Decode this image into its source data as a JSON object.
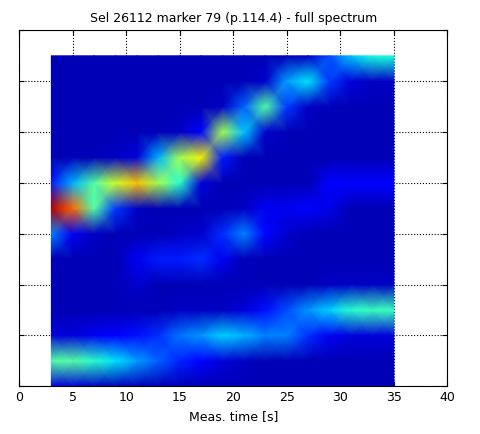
{
  "chart_data": {
    "type": "heatmap",
    "title": "Sel 26112 marker 79 (p.114.4) - full spectrum",
    "x_label": "Meas. time [s]",
    "xlim": [
      0,
      40
    ],
    "xticks": [
      0,
      5,
      10,
      15,
      20,
      25,
      30,
      35,
      40
    ],
    "ylim": [
      0,
      7
    ],
    "yticks": [
      0,
      1,
      2,
      3,
      4,
      5,
      6,
      7
    ],
    "grid": true,
    "tick_labels": "x",
    "color": "jet",
    "x": [
      3,
      5,
      7,
      9,
      11,
      13,
      15,
      17,
      19,
      21,
      23,
      25,
      27,
      29,
      31,
      33,
      35
    ],
    "y": [
      0,
      0.5,
      1,
      1.5,
      2,
      2.5,
      3,
      3.5,
      4,
      4.5,
      5,
      5.5,
      6,
      6.5
    ],
    "cell_range": [
      0,
      1
    ],
    "cells": [
      [
        0.08,
        0.08,
        0.06,
        0.05,
        0.05,
        0.05,
        0.05,
        0.05,
        0.05,
        0.05,
        0.05,
        0.05,
        0.05,
        0.05,
        0.05,
        0.05,
        0.05
      ],
      [
        0.45,
        0.45,
        0.4,
        0.35,
        0.28,
        0.22,
        0.16,
        0.12,
        0.08,
        0.06,
        0.05,
        0.05,
        0.05,
        0.05,
        0.05,
        0.05,
        0.05
      ],
      [
        0.08,
        0.08,
        0.1,
        0.12,
        0.14,
        0.17,
        0.24,
        0.27,
        0.33,
        0.3,
        0.25,
        0.25,
        0.17,
        0.1,
        0.08,
        0.08,
        0.08
      ],
      [
        0.05,
        0.05,
        0.05,
        0.05,
        0.05,
        0.05,
        0.06,
        0.06,
        0.06,
        0.08,
        0.14,
        0.2,
        0.27,
        0.33,
        0.4,
        0.42,
        0.42
      ],
      [
        0.05,
        0.05,
        0.05,
        0.05,
        0.07,
        0.05,
        0.05,
        0.05,
        0.05,
        0.05,
        0.05,
        0.05,
        0.05,
        0.06,
        0.06,
        0.06,
        0.06
      ],
      [
        0.05,
        0.05,
        0.05,
        0.05,
        0.1,
        0.15,
        0.15,
        0.17,
        0.1,
        0.05,
        0.05,
        0.05,
        0.05,
        0.05,
        0.05,
        0.05,
        0.05
      ],
      [
        0.25,
        0.1,
        0.06,
        0.05,
        0.05,
        0.05,
        0.06,
        0.07,
        0.17,
        0.25,
        0.13,
        0.07,
        0.05,
        0.05,
        0.05,
        0.05,
        0.05
      ],
      [
        0.95,
        0.8,
        0.45,
        0.18,
        0.06,
        0.05,
        0.05,
        0.05,
        0.05,
        0.06,
        0.1,
        0.1,
        0.12,
        0.09,
        0.05,
        0.05,
        0.05
      ],
      [
        0.15,
        0.3,
        0.45,
        0.6,
        0.7,
        0.55,
        0.4,
        0.08,
        0.05,
        0.05,
        0.05,
        0.05,
        0.05,
        0.12,
        0.12,
        0.12,
        0.12
      ],
      [
        0.05,
        0.05,
        0.05,
        0.06,
        0.08,
        0.3,
        0.55,
        0.65,
        0.15,
        0.05,
        0.05,
        0.05,
        0.05,
        0.05,
        0.05,
        0.05,
        0.05
      ],
      [
        0.05,
        0.05,
        0.05,
        0.05,
        0.05,
        0.05,
        0.06,
        0.12,
        0.55,
        0.32,
        0.07,
        0.05,
        0.05,
        0.05,
        0.05,
        0.05,
        0.05
      ],
      [
        0.05,
        0.05,
        0.05,
        0.05,
        0.05,
        0.05,
        0.05,
        0.05,
        0.06,
        0.22,
        0.45,
        0.18,
        0.06,
        0.05,
        0.05,
        0.05,
        0.05
      ],
      [
        0.05,
        0.05,
        0.05,
        0.05,
        0.05,
        0.05,
        0.05,
        0.05,
        0.05,
        0.05,
        0.07,
        0.28,
        0.35,
        0.18,
        0.08,
        0.06,
        0.06
      ],
      [
        0.05,
        0.05,
        0.05,
        0.05,
        0.05,
        0.05,
        0.05,
        0.05,
        0.05,
        0.05,
        0.05,
        0.05,
        0.06,
        0.2,
        0.32,
        0.38,
        0.38
      ]
    ]
  }
}
